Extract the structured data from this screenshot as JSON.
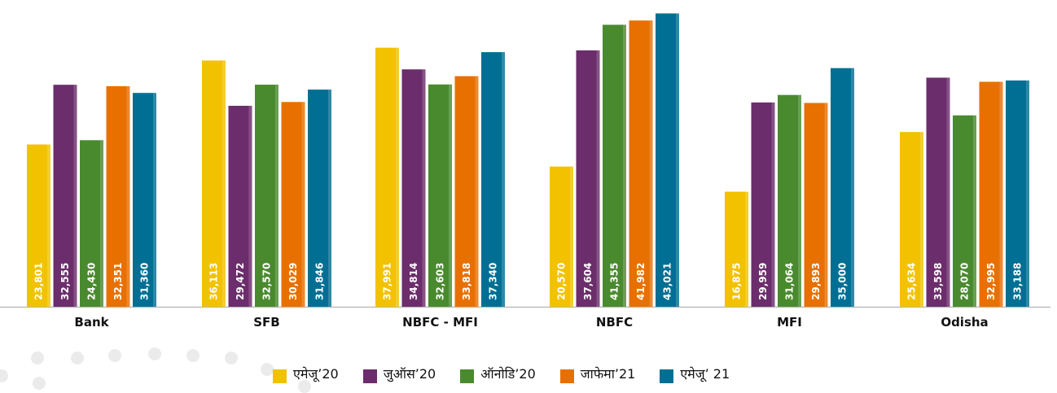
{
  "chart_data": {
    "type": "bar",
    "categories": [
      "Bank",
      "SFB",
      "NBFC - MFI",
      "NBFC",
      "MFI",
      "Odisha"
    ],
    "series": [
      {
        "name": "एमेजू’20",
        "color": "#f2c200",
        "values": [
          23801,
          36113,
          37991,
          20570,
          16875,
          25634
        ]
      },
      {
        "name": "जुऑस’20",
        "color": "#6b2d6b",
        "values": [
          32555,
          29472,
          34814,
          37604,
          29959,
          33598
        ]
      },
      {
        "name": "ऑनोडि’20",
        "color": "#4a8a2f",
        "values": [
          24430,
          32570,
          32603,
          41355,
          31064,
          28070
        ]
      },
      {
        "name": "जाफेमा’21",
        "color": "#e87000",
        "values": [
          32351,
          30029,
          33818,
          41982,
          29893,
          32995
        ]
      },
      {
        "name": "एमेजू’ 21",
        "color": "#006f93",
        "values": [
          31360,
          31846,
          37340,
          43021,
          35000,
          33188
        ]
      }
    ],
    "value_labels": [
      [
        "23,801",
        "36,113",
        "37,991",
        "20,570",
        "16,875",
        "25,634"
      ],
      [
        "32,555",
        "29,472",
        "34,814",
        "37,604",
        "29,959",
        "33,598"
      ],
      [
        "24,430",
        "32,570",
        "32,603",
        "41,355",
        "31,064",
        "28,070"
      ],
      [
        "32,351",
        "30,029",
        "33,818",
        "41,982",
        "29,893",
        "32,995"
      ],
      [
        "31,360",
        "31,846",
        "37,340",
        "43,021",
        "35,000",
        "33,188"
      ]
    ],
    "legend_position": "bottom",
    "grid": false
  },
  "legend": {
    "items": [
      {
        "label": "एमेजू’20",
        "color": "#f2c200"
      },
      {
        "label": "जुऑस’20",
        "color": "#6b2d6b"
      },
      {
        "label": "ऑनोडि’20",
        "color": "#4a8a2f"
      },
      {
        "label": "जाफेमा’21",
        "color": "#e87000"
      },
      {
        "label": "एमेजू’ 21",
        "color": "#006f93"
      }
    ]
  }
}
